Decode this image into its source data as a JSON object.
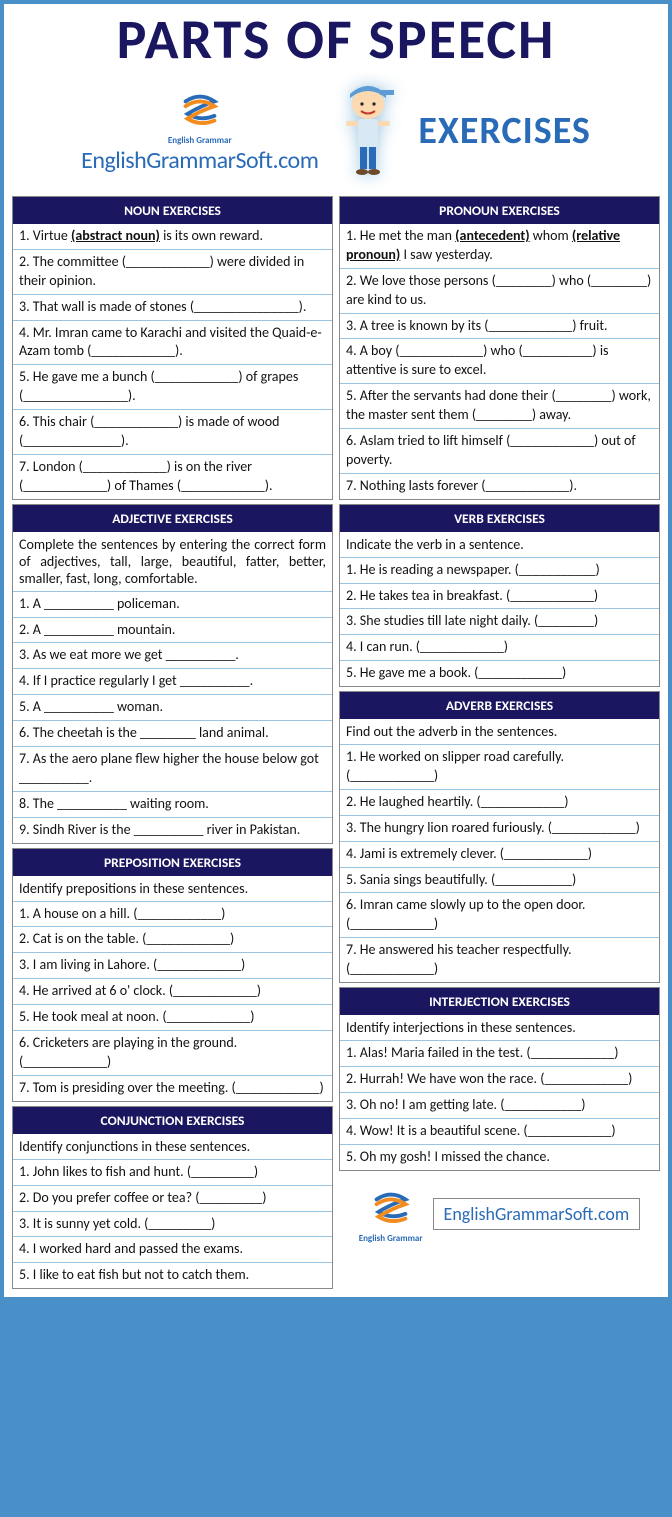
{
  "header": {
    "main_title": "PARTS OF SPEECH",
    "subtitle": "EXERCISES",
    "site_name": "EnglishGrammarSoft.com",
    "logo_label": "English Grammar"
  },
  "colors": {
    "border": "#4a90c8",
    "dark_navy": "#1a1760",
    "link_blue": "#2a6bb8",
    "divider": "#9bc4e0",
    "bg": "#ffffff",
    "text": "#111111",
    "logo_orange": "#f28c1f"
  },
  "left_sections": [
    {
      "title": "NOUN EXERCISES",
      "items": [
        "1.  Virtue <b><u>(abstract noun)</u></b> is its own reward.",
        "2.  The committee (____________)  were divided in their opinion.",
        "3.  That wall is made of stones (_______________).",
        "4.  Mr. Imran came to Karachi and visited the Quaid-e-Azam tomb (____________).",
        "5.  He gave me a bunch (____________)  of grapes (_______________).",
        "6.  This chair (____________)  is made of wood (______________).",
        "7.  London (____________)  is on the river (____________)  of Thames (____________)."
      ]
    },
    {
      "title": "ADJECTIVE EXERCISES",
      "intro": "Complete the sentences by entering the correct form of adjectives, tall, large, beautiful, fatter, better, smaller, fast, long, comfortable.",
      "items": [
        "1.  A __________  policeman.",
        "2.  A __________  mountain.",
        "3.  As we eat more we get __________.",
        "4.  If I practice regularly I get __________.",
        "5.  A __________  woman.",
        "6.  The cheetah is the ________ land animal.",
        "7.  As the aero plane flew higher the house below got __________.",
        "8.  The __________  waiting room.",
        "9.  Sindh River is the __________ river in Pakistan."
      ]
    },
    {
      "title": "PREPOSITION EXERCISES",
      "intro": "Identify prepositions in these sentences.",
      "items": [
        "1.  A house on a hill. (____________)",
        "2.  Cat is on the table. (____________)",
        "3.  I am living in Lahore. (____________)",
        "4.  He arrived at 6 o' clock. (____________)",
        "5.  He took meal at noon. (____________)",
        "6.  Cricketers are playing in the ground. (____________)",
        "7.  Tom is presiding over the meeting. (____________)"
      ]
    },
    {
      "title": "CONJUNCTION EXERCISES",
      "intro": "Identify conjunctions in these sentences.",
      "items": [
        "1.  John likes to fish and hunt. (_________)",
        "2.  Do you prefer coffee or tea? (_________)",
        "3.  It is sunny yet cold. (_________)",
        "4.  I worked hard and passed the exams.",
        "5.  I like to eat fish but not to catch them."
      ]
    }
  ],
  "right_sections": [
    {
      "title": "PRONOUN EXERCISES",
      "items": [
        "1.  He met the man <b><u>(antecedent)</u></b> whom <b><u>(relative pronoun)</u></b> I saw yesterday.",
        "2.  We love those persons (________)  who (________)  are kind to us.",
        "3.  A tree is known by its (____________)  fruit.",
        "4.  A boy (____________)  who (__________) is attentive is sure to excel.",
        "5.  After the servants had done their (________)  work, the master sent them (________)  away.",
        "6.        Aslam tried to lift himself (____________)  out of poverty.",
        "7.        Nothing lasts forever (____________)."
      ]
    },
    {
      "title": "VERB EXERCISES",
      "intro": "Indicate the verb in a sentence.",
      "items": [
        "1. He is reading a newspaper. (___________)",
        "2. He takes tea in breakfast. (____________)",
        "3. She studies till late night daily. (________)",
        "4. I can run. (____________)",
        "5. He gave me a book. (____________)"
      ]
    },
    {
      "title": "ADVERB EXERCISES",
      "intro": "Find out the adverb in the sentences.",
      "items": [
        "1.  He worked on slipper road carefully. (____________)",
        "2.  He laughed heartily. (____________)",
        "3.  The hungry lion roared furiously. (____________)",
        "4.  Jami is extremely clever. (____________)",
        "5.  Sania sings beautifully. (___________)",
        "6.  Imran came slowly up to the open door. (____________)",
        "7. He answered his teacher respectfully.  (____________)"
      ]
    },
    {
      "title": "INTERJECTION EXERCISES",
      "intro": "Identify interjections in these sentences.",
      "items": [
        "1.  Alas! Maria failed in the test. (____________)",
        "2.  Hurrah! We have won the race. (____________)",
        "3.  Oh no! I am getting late. (___________)",
        "4.  Wow! It is a beautiful scene. (____________)",
        "5.  Oh my gosh! I missed the chance."
      ]
    }
  ],
  "footer": {
    "site_name": "EnglishGrammarSoft.com",
    "logo_label": "English Grammar"
  }
}
